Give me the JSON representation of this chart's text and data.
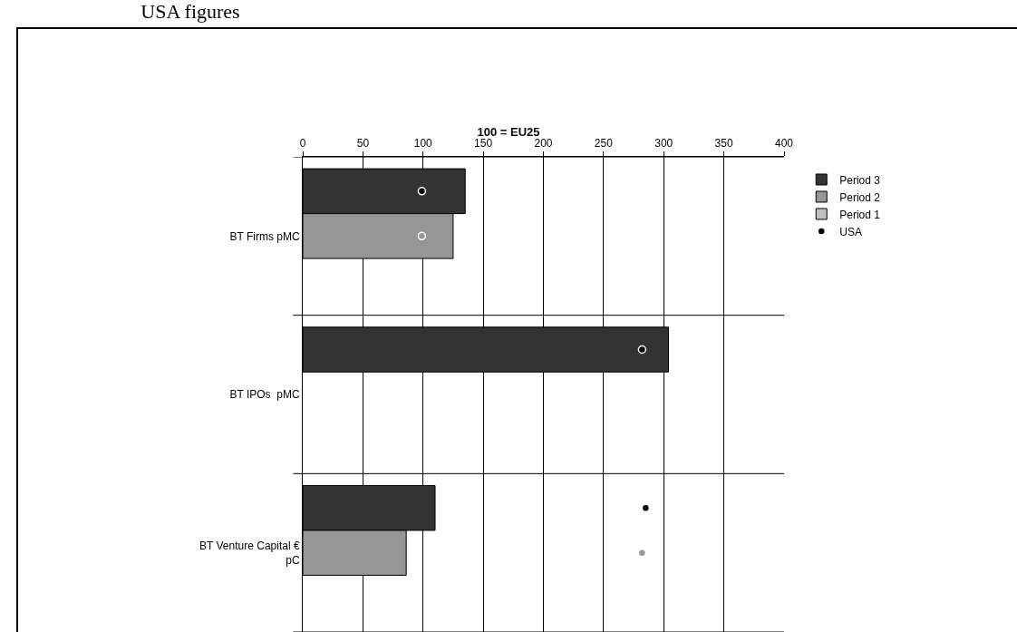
{
  "chart_data": {
    "type": "bar",
    "orientation": "horizontal",
    "title": "100 = EU25",
    "annotations": [
      "USA figures"
    ],
    "categories": [
      "BT Firms pMC",
      "BT IPOs  pMC",
      "BT Venture Capital € pC"
    ],
    "series": [
      {
        "name": "Period 3",
        "color": "#333333",
        "values": [
          135,
          304,
          110
        ]
      },
      {
        "name": "Period 2",
        "color": "#969696",
        "values": [
          125,
          null,
          86
        ]
      },
      {
        "name": "Period 1",
        "color": "#c0c0c0",
        "values": [
          null,
          null,
          null
        ]
      },
      {
        "type": "scatter",
        "name": "USA",
        "color": "#000000",
        "values": [
          99,
          282,
          285
        ]
      },
      {
        "type": "scatter",
        "color": "#969696",
        "values": [
          99,
          null,
          282
        ]
      }
    ],
    "xlim": [
      0,
      400
    ],
    "xticks": [
      0,
      50,
      100,
      150,
      200,
      250,
      300,
      350,
      400
    ],
    "grid": true,
    "legend": "right",
    "marker": "circle"
  }
}
